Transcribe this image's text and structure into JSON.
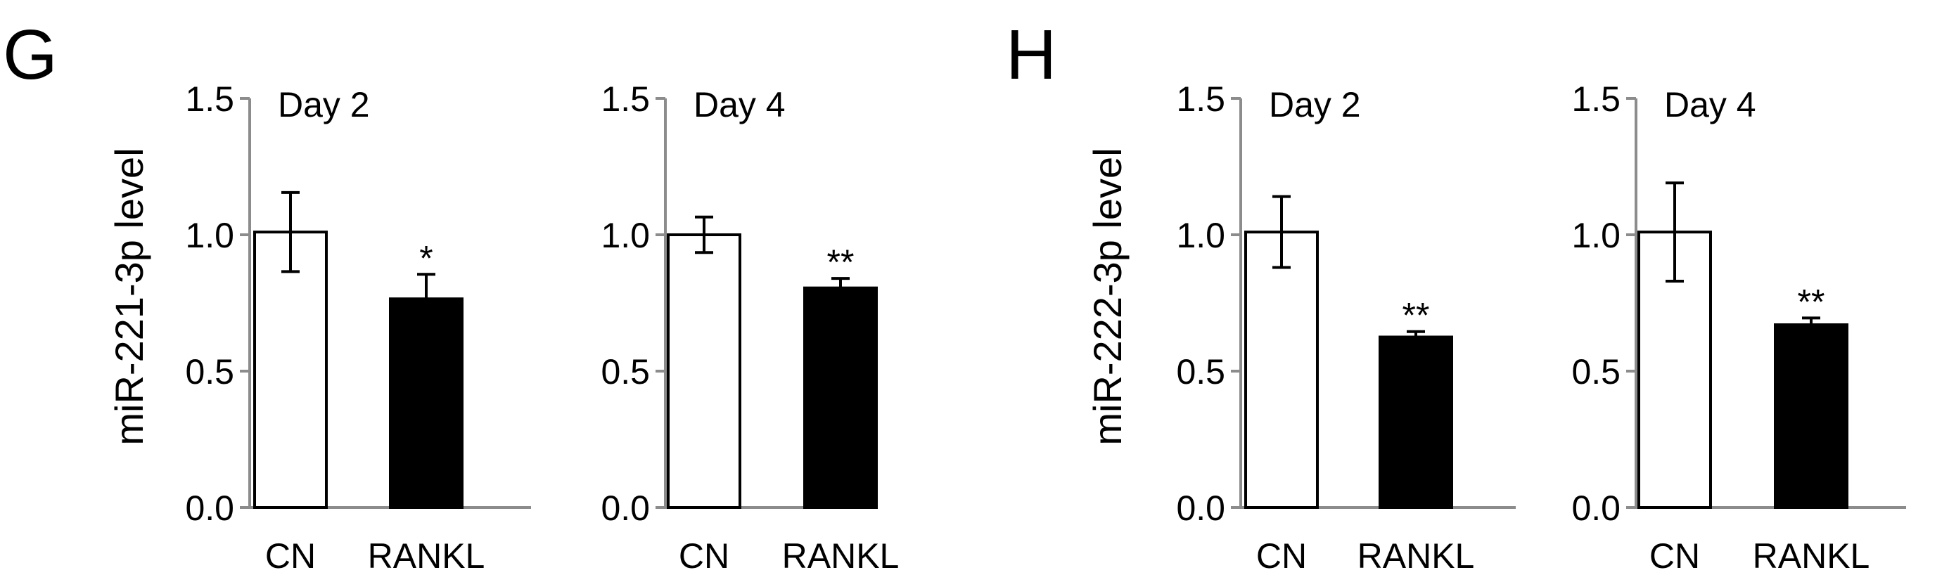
{
  "panels": [
    {
      "letter": "G",
      "ylabel": "miR-221-3p  level"
    },
    {
      "letter": "H",
      "ylabel": "miR-222-3p  level"
    }
  ],
  "colors": {
    "axis": "#8c8c8c",
    "cn_fill": "#ffffff",
    "rankl_fill": "#000000",
    "stroke": "#000000"
  },
  "chart_data": [
    {
      "type": "bar",
      "panel": "G",
      "title": "Day 2",
      "categories": [
        "CN",
        "RANKL"
      ],
      "values": [
        1.01,
        0.765
      ],
      "errors": [
        0.145,
        0.09
      ],
      "significance": [
        "",
        "*"
      ],
      "ylim": [
        0,
        1.5
      ],
      "yticks": [
        "0.0",
        "0.5",
        "1.0",
        "1.5"
      ]
    },
    {
      "type": "bar",
      "panel": "G",
      "title": "Day 4",
      "categories": [
        "CN",
        "RANKL"
      ],
      "values": [
        1.0,
        0.805
      ],
      "errors": [
        0.065,
        0.035
      ],
      "significance": [
        "",
        "**"
      ],
      "ylim": [
        0,
        1.5
      ],
      "yticks": [
        "0.0",
        "0.5",
        "1.0",
        "1.5"
      ]
    },
    {
      "type": "bar",
      "panel": "H",
      "title": "Day 2",
      "categories": [
        "CN",
        "RANKL"
      ],
      "values": [
        1.01,
        0.625
      ],
      "errors": [
        0.13,
        0.02
      ],
      "significance": [
        "",
        "**"
      ],
      "ylim": [
        0,
        1.5
      ],
      "yticks": [
        "0.0",
        "0.5",
        "1.0",
        "1.5"
      ]
    },
    {
      "type": "bar",
      "panel": "H",
      "title": "Day 4",
      "categories": [
        "CN",
        "RANKL"
      ],
      "values": [
        1.01,
        0.67
      ],
      "errors": [
        0.18,
        0.025
      ],
      "significance": [
        "",
        "**"
      ],
      "ylim": [
        0,
        1.5
      ],
      "yticks": [
        "0.0",
        "0.5",
        "1.0",
        "1.5"
      ]
    }
  ]
}
